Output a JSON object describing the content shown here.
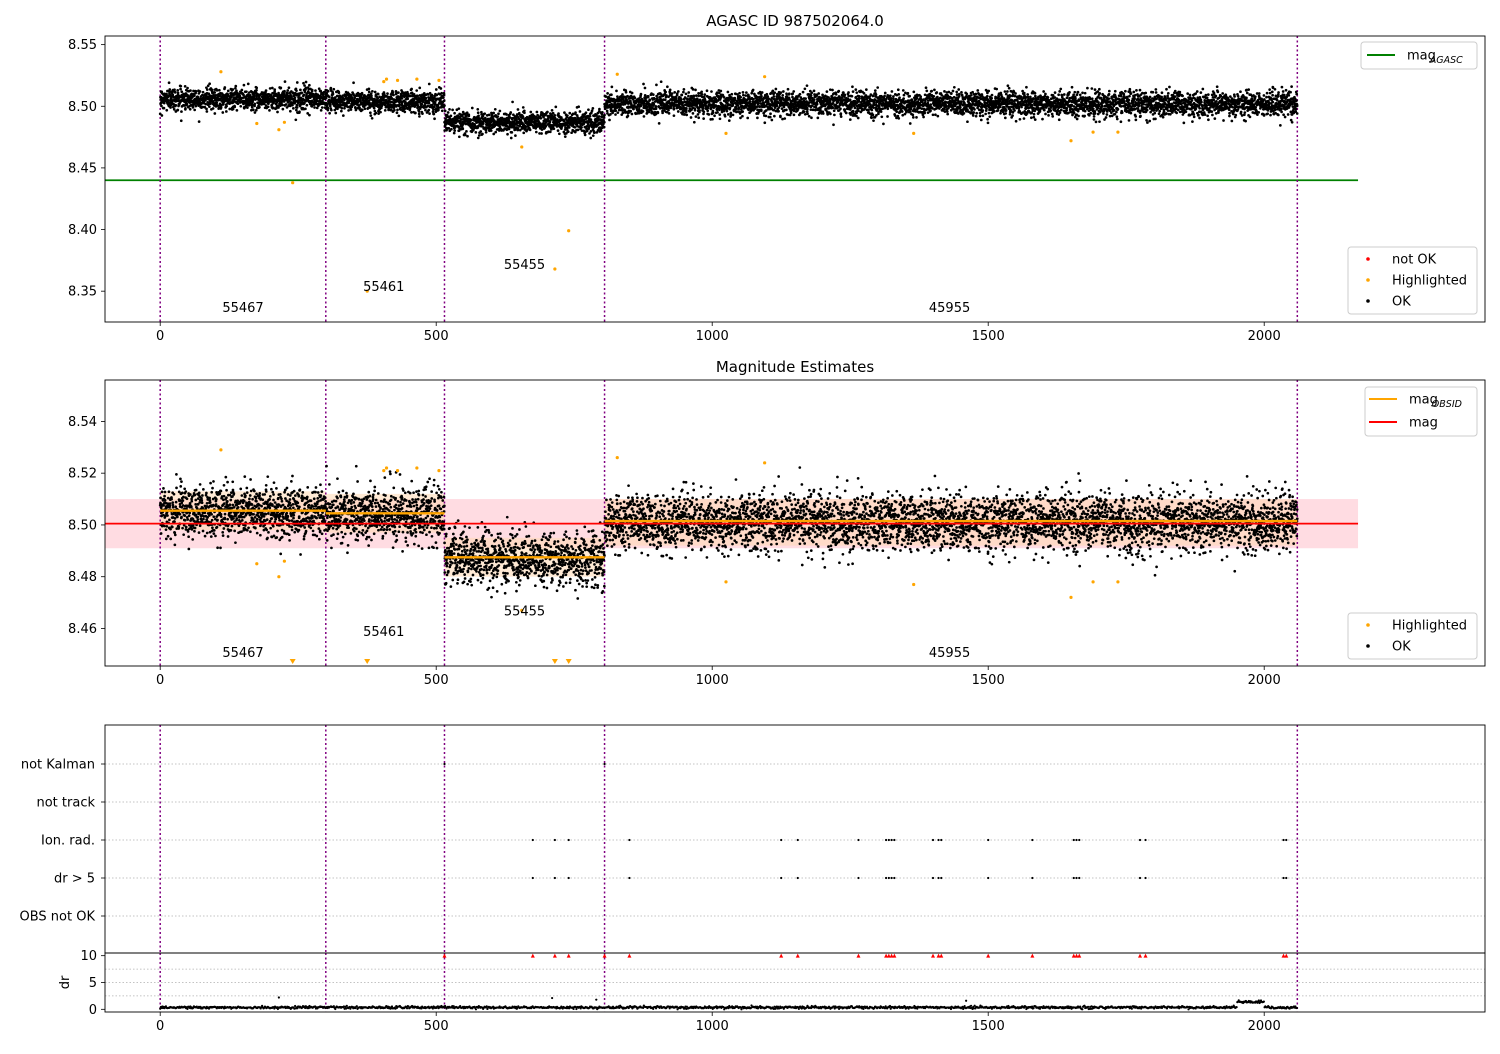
{
  "figure": {
    "title_top": "AGASC ID 987502064.0",
    "title_mid": "Magnitude Estimates"
  },
  "colors": {
    "ok": "#000000",
    "highlighted": "#ffa500",
    "not_ok": "#ff0000",
    "mag_agasc": "#008000",
    "mag_obsid": "#ffa500",
    "mag": "#ff0000",
    "obsid_boundary": "#800080",
    "band_mag": "#ffc0cb",
    "band_obsid": "#ffd9b3"
  },
  "chart_data": [
    {
      "id": "top",
      "type": "scatter",
      "title": "AGASC ID 987502064.0",
      "xlim": [
        -100,
        2400
      ],
      "ylim": [
        8.325,
        8.557
      ],
      "xticks": [
        0,
        500,
        1000,
        1500,
        2000
      ],
      "yticks": [
        8.35,
        8.4,
        8.45,
        8.5,
        8.55
      ],
      "ytick_labels": [
        "8.35",
        "8.40",
        "8.45",
        "8.50",
        "8.55"
      ],
      "obsid_boundaries": [
        0,
        300,
        515,
        805,
        2060
      ],
      "obsid_labels": [
        {
          "text": "55467",
          "x": 150,
          "y": 8.333
        },
        {
          "text": "55461",
          "x": 405,
          "y": 8.35
        },
        {
          "text": "55455",
          "x": 660,
          "y": 8.368
        },
        {
          "text": "45955",
          "x": 1430,
          "y": 8.333
        }
      ],
      "series": [
        {
          "name": "mag_AGASC",
          "kind": "hline",
          "y": 8.44,
          "x": [
            -100,
            2170
          ]
        }
      ],
      "segments": [
        {
          "x": [
            0,
            300
          ],
          "mean": 8.506,
          "spread": 0.008
        },
        {
          "x": [
            300,
            515
          ],
          "mean": 8.504,
          "spread": 0.008
        },
        {
          "x": [
            515,
            805
          ],
          "mean": 8.487,
          "spread": 0.008
        },
        {
          "x": [
            805,
            2060
          ],
          "mean": 8.502,
          "spread": 0.009
        }
      ],
      "highlighted": [
        [
          110,
          8.528
        ],
        [
          175,
          8.486
        ],
        [
          215,
          8.481
        ],
        [
          225,
          8.487
        ],
        [
          240,
          8.438
        ],
        [
          375,
          8.35
        ],
        [
          405,
          8.52
        ],
        [
          410,
          8.522
        ],
        [
          430,
          8.521
        ],
        [
          465,
          8.522
        ],
        [
          505,
          8.521
        ],
        [
          655,
          8.467
        ],
        [
          715,
          8.368
        ],
        [
          740,
          8.399
        ],
        [
          828,
          8.526
        ],
        [
          1025,
          8.478
        ],
        [
          1095,
          8.524
        ],
        [
          1365,
          8.478
        ],
        [
          1650,
          8.472
        ],
        [
          1690,
          8.479
        ],
        [
          1735,
          8.479
        ]
      ],
      "legend": [
        {
          "label": "mag",
          "sub": "AGASC",
          "kind": "line",
          "color": "#008000"
        }
      ],
      "legend2": [
        {
          "label": "not OK",
          "kind": "dot",
          "color": "#ff0000"
        },
        {
          "label": "Highlighted",
          "kind": "dot",
          "color": "#ffa500"
        },
        {
          "label": "OK",
          "kind": "dot",
          "color": "#000000"
        }
      ],
      "legend_location": "upper right; lower right"
    },
    {
      "id": "mid",
      "type": "scatter",
      "title": "Magnitude Estimates",
      "xlim": [
        -100,
        2400
      ],
      "ylim": [
        8.4455,
        8.556
      ],
      "xticks": [
        0,
        500,
        1000,
        1500,
        2000
      ],
      "yticks": [
        8.46,
        8.48,
        8.5,
        8.52,
        8.54
      ],
      "ytick_labels": [
        "8.46",
        "8.48",
        "8.50",
        "8.52",
        "8.54"
      ],
      "obsid_boundaries": [
        0,
        300,
        515,
        805,
        2060
      ],
      "obsid_labels": [
        {
          "text": "55467",
          "x": 150,
          "y": 8.449
        },
        {
          "text": "55461",
          "x": 405,
          "y": 8.457
        },
        {
          "text": "55455",
          "x": 660,
          "y": 8.465
        },
        {
          "text": "45955",
          "x": 1430,
          "y": 8.449
        }
      ],
      "mag": 8.5005,
      "mag_band": [
        8.491,
        8.51
      ],
      "obsid_mags": [
        {
          "x": [
            0,
            300
          ],
          "y": 8.5055,
          "band": [
            8.498,
            8.513
          ]
        },
        {
          "x": [
            300,
            515
          ],
          "y": 8.5045,
          "band": [
            8.497,
            8.512
          ]
        },
        {
          "x": [
            515,
            805
          ],
          "y": 8.4875,
          "band": [
            8.48,
            8.495
          ]
        },
        {
          "x": [
            805,
            2060
          ],
          "y": 8.5015,
          "band": [
            8.492,
            8.51
          ]
        }
      ],
      "segments": [
        {
          "x": [
            0,
            300
          ],
          "mean": 8.505,
          "spread": 0.009
        },
        {
          "x": [
            300,
            515
          ],
          "mean": 8.504,
          "spread": 0.009
        },
        {
          "x": [
            515,
            805
          ],
          "mean": 8.487,
          "spread": 0.009
        },
        {
          "x": [
            805,
            2060
          ],
          "mean": 8.501,
          "spread": 0.01
        }
      ],
      "highlighted": [
        [
          110,
          8.529
        ],
        [
          175,
          8.485
        ],
        [
          215,
          8.48
        ],
        [
          225,
          8.486
        ],
        [
          405,
          8.521
        ],
        [
          410,
          8.522
        ],
        [
          430,
          8.521
        ],
        [
          465,
          8.522
        ],
        [
          505,
          8.521
        ],
        [
          655,
          8.467
        ],
        [
          828,
          8.526
        ],
        [
          1025,
          8.478
        ],
        [
          1095,
          8.524
        ],
        [
          1365,
          8.477
        ],
        [
          1650,
          8.472
        ],
        [
          1690,
          8.478
        ],
        [
          1735,
          8.478
        ]
      ],
      "out_of_range_markers": [
        240,
        375,
        715,
        740
      ],
      "legend": [
        {
          "label": "mag",
          "sub": "OBSID",
          "kind": "line",
          "color": "#ffa500"
        },
        {
          "label": "mag",
          "kind": "line",
          "color": "#ff0000"
        }
      ],
      "legend2": [
        {
          "label": "Highlighted",
          "kind": "dot",
          "color": "#ffa500"
        },
        {
          "label": "OK",
          "kind": "dot",
          "color": "#000000"
        }
      ],
      "legend_location": "upper right; lower right"
    },
    {
      "id": "flags",
      "type": "scatter",
      "xlim": [
        -100,
        2400
      ],
      "categories": [
        "not Kalman",
        "not track",
        "Ion. rad.",
        "dr > 5",
        "OBS not OK"
      ],
      "obsid_boundaries": [
        0,
        300,
        515,
        805,
        2060
      ],
      "flag_points": {
        "not Kalman": [
          515,
          805
        ],
        "not track": [],
        "Ion. rad.": [
          675,
          715,
          740,
          850,
          1125,
          1155,
          1265,
          1315,
          1320,
          1325,
          1330,
          1400,
          1410,
          1415,
          1500,
          1580,
          1655,
          1660,
          1665,
          1775,
          1785,
          2035,
          2040
        ],
        "dr > 5": [
          675,
          715,
          740,
          850,
          1125,
          1155,
          1265,
          1315,
          1320,
          1325,
          1330,
          1400,
          1410,
          1415,
          1500,
          1580,
          1655,
          1660,
          1665,
          1775,
          1785,
          2035,
          2040
        ],
        "OBS not OK": []
      }
    },
    {
      "id": "dr",
      "type": "scatter",
      "xlim": [
        -100,
        2400
      ],
      "ylim": [
        -0.5,
        10.5
      ],
      "ylabel": "dr",
      "xticks": [
        0,
        500,
        1000,
        1500,
        2000
      ],
      "yticks": [
        0,
        5,
        10
      ],
      "ytick_labels": [
        "0",
        "5",
        "10"
      ],
      "xtick_labels": [
        "0",
        "500",
        "1000",
        "1500",
        "2000"
      ],
      "obsid_boundaries": [
        0,
        300,
        515,
        805,
        2060
      ],
      "clipped_markers": [
        515,
        805,
        675,
        715,
        740,
        850,
        1125,
        1155,
        1265,
        1315,
        1320,
        1325,
        1330,
        1400,
        1410,
        1415,
        1500,
        1580,
        1655,
        1660,
        1665,
        1775,
        1785,
        2035,
        2040
      ],
      "outliers": [
        [
          215,
          2.2
        ],
        [
          710,
          2.1
        ],
        [
          790,
          1.8
        ],
        [
          1460,
          1.6
        ],
        [
          1975,
          1.5
        ],
        [
          1990,
          1.5
        ]
      ]
    }
  ]
}
